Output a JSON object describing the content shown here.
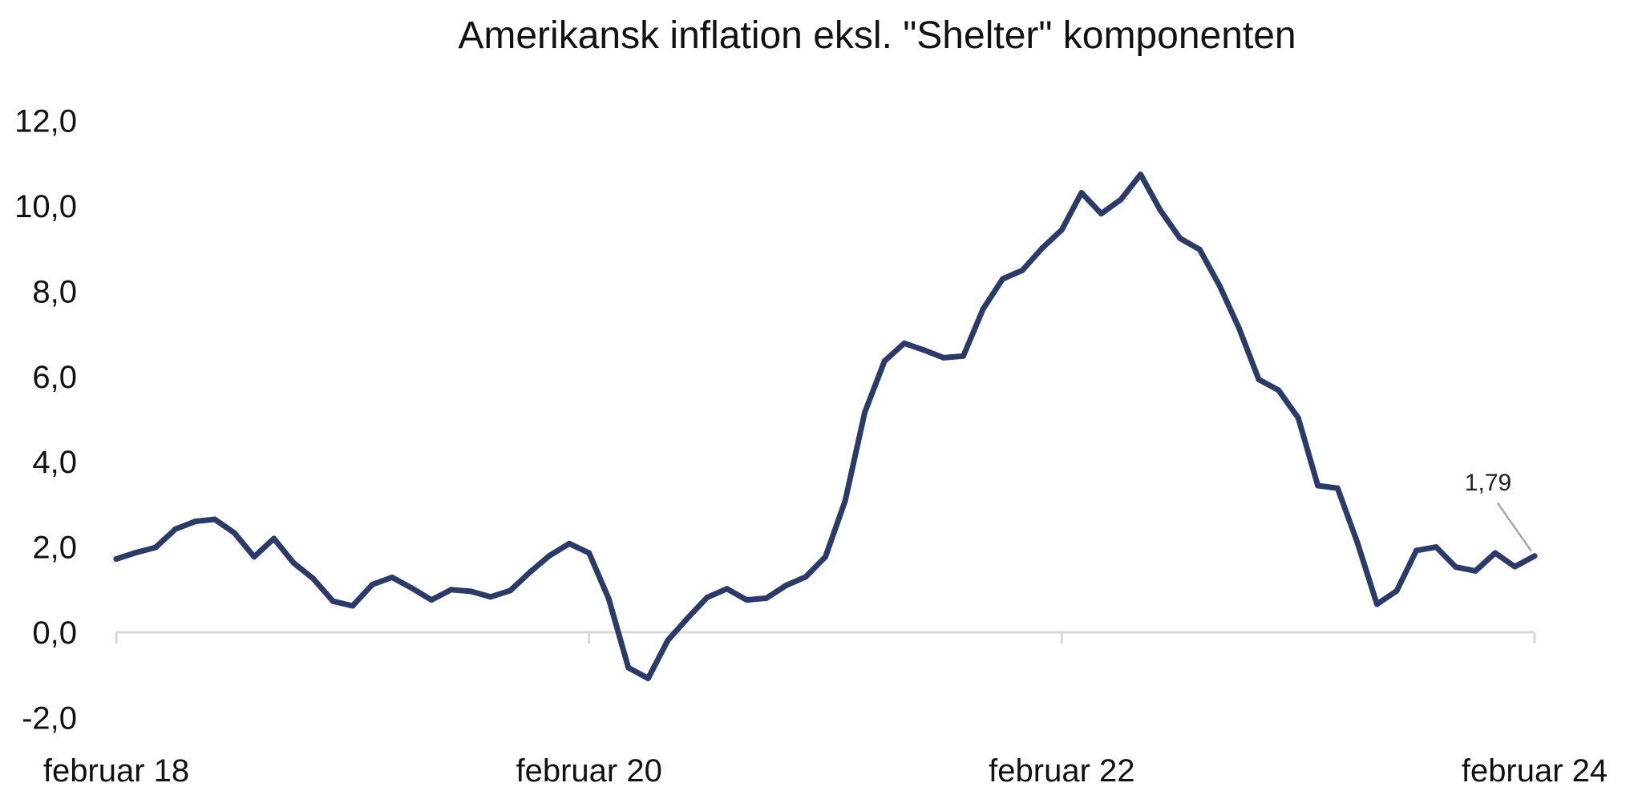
{
  "chart_data": {
    "type": "line",
    "title": "Amerikansk inflation eksl. \"Shelter\" komponenten",
    "xlabel": "",
    "ylabel": "",
    "ylim": [
      -2.0,
      12.0
    ],
    "yticks": [
      "-2,0",
      "0,0",
      "2,0",
      "4,0",
      "6,0",
      "8,0",
      "10,0",
      "12,0"
    ],
    "ytick_values": [
      -2,
      0,
      2,
      4,
      6,
      8,
      10,
      12
    ],
    "xtick_labels": [
      "februar 18",
      "februar 20",
      "februar 22",
      "februar 24"
    ],
    "xtick_values": [
      "2018-02",
      "2020-02",
      "2022-02",
      "2024-02"
    ],
    "grid": false,
    "line_color": "#2b3a67",
    "axis_color": "#d9d9d9",
    "series": [
      {
        "x": [
          "2018-02",
          "2018-03",
          "2018-04",
          "2018-05",
          "2018-06",
          "2018-07",
          "2018-08",
          "2018-09",
          "2018-10",
          "2018-11",
          "2018-12",
          "2019-01",
          "2019-02",
          "2019-03",
          "2019-04",
          "2019-05",
          "2019-06",
          "2019-07",
          "2019-08",
          "2019-09",
          "2019-10",
          "2019-11",
          "2019-12",
          "2020-01",
          "2020-02",
          "2020-03",
          "2020-04",
          "2020-05",
          "2020-06",
          "2020-07",
          "2020-08",
          "2020-09",
          "2020-10",
          "2020-11",
          "2020-12",
          "2021-01",
          "2021-02",
          "2021-03",
          "2021-04",
          "2021-05",
          "2021-06",
          "2021-07",
          "2021-08",
          "2021-09",
          "2021-10",
          "2021-11",
          "2021-12",
          "2022-01",
          "2022-02",
          "2022-03",
          "2022-04",
          "2022-05",
          "2022-06",
          "2022-07",
          "2022-08",
          "2022-09",
          "2022-10",
          "2022-11",
          "2022-12",
          "2023-01",
          "2023-02",
          "2023-03",
          "2023-04",
          "2023-05",
          "2023-06",
          "2023-07",
          "2023-08",
          "2023-09",
          "2023-10",
          "2023-11",
          "2023-12",
          "2024-01",
          "2024-02"
        ],
        "values": [
          1.72,
          1.87,
          1.99,
          2.42,
          2.6,
          2.65,
          2.33,
          1.77,
          2.2,
          1.63,
          1.26,
          0.73,
          0.62,
          1.12,
          1.29,
          1.04,
          0.76,
          1.0,
          0.96,
          0.83,
          0.98,
          1.41,
          1.8,
          2.08,
          1.86,
          0.79,
          -0.83,
          -1.08,
          -0.19,
          0.33,
          0.82,
          1.02,
          0.76,
          0.8,
          1.1,
          1.3,
          1.77,
          3.08,
          5.16,
          6.36,
          6.78,
          6.62,
          6.44,
          6.48,
          7.58,
          8.29,
          8.49,
          9.01,
          9.44,
          10.31,
          9.82,
          10.15,
          10.74,
          9.9,
          9.24,
          8.98,
          8.14,
          7.13,
          5.93,
          5.68,
          5.03,
          3.44,
          3.38,
          2.11,
          0.66,
          0.97,
          1.92,
          2.0,
          1.53,
          1.44,
          1.86,
          1.54,
          1.79
        ]
      }
    ],
    "annotations": [
      {
        "text": "1,79",
        "x": "2024-02",
        "y": 1.79
      }
    ]
  }
}
